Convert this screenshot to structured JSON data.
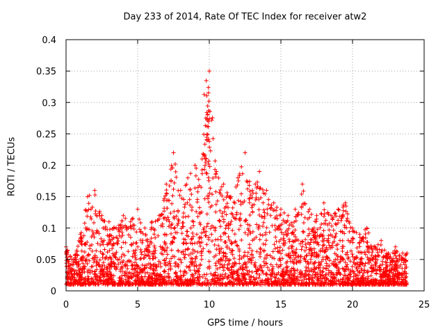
{
  "chart_data": {
    "type": "scatter",
    "title": "Day 233 of 2014, Rate Of TEC Index for receiver atw2",
    "xlabel": "GPS time / hours",
    "ylabel": "ROTI / TECUs",
    "xlim": [
      0,
      25
    ],
    "ylim": [
      0,
      0.4
    ],
    "xticks": [
      0,
      5,
      10,
      15,
      20,
      25
    ],
    "xtick_labels": [
      "0",
      "5",
      "10",
      "15",
      "20",
      "25"
    ],
    "yticks": [
      0,
      0.05,
      0.1,
      0.15,
      0.2,
      0.25,
      0.3,
      0.35,
      0.4
    ],
    "ytick_labels": [
      "0",
      "0.05",
      "0.1",
      "0.15",
      "0.2",
      "0.25",
      "0.3",
      "0.35",
      "0.4"
    ],
    "grid": true,
    "marker": "+",
    "series": [
      {
        "name": "ROTI",
        "color": "#ff0000",
        "x_range": [
          0,
          23.8
        ],
        "envelope_hours": [
          0,
          0.5,
          1.0,
          1.5,
          2.0,
          2.5,
          3.0,
          3.5,
          4.0,
          4.5,
          5.0,
          5.5,
          6.0,
          6.5,
          7.0,
          7.5,
          8.0,
          8.5,
          9.0,
          9.5,
          10.0,
          10.5,
          11.0,
          11.5,
          12.0,
          12.5,
          13.0,
          13.5,
          14.0,
          14.5,
          15.0,
          15.5,
          16.0,
          16.5,
          17.0,
          17.5,
          18.0,
          18.5,
          19.0,
          19.5,
          20.0,
          20.5,
          21.0,
          21.5,
          22.0,
          22.5,
          23.0,
          23.5,
          23.8
        ],
        "envelope_max_roti": [
          0.07,
          0.05,
          0.09,
          0.15,
          0.16,
          0.12,
          0.11,
          0.1,
          0.12,
          0.11,
          0.13,
          0.1,
          0.11,
          0.12,
          0.17,
          0.22,
          0.16,
          0.18,
          0.2,
          0.21,
          0.35,
          0.19,
          0.17,
          0.15,
          0.18,
          0.22,
          0.16,
          0.19,
          0.16,
          0.14,
          0.13,
          0.12,
          0.13,
          0.17,
          0.13,
          0.12,
          0.14,
          0.12,
          0.13,
          0.14,
          0.1,
          0.09,
          0.1,
          0.07,
          0.08,
          0.06,
          0.07,
          0.06,
          0.06
        ],
        "typical_min_roti": 0.01
      }
    ]
  }
}
